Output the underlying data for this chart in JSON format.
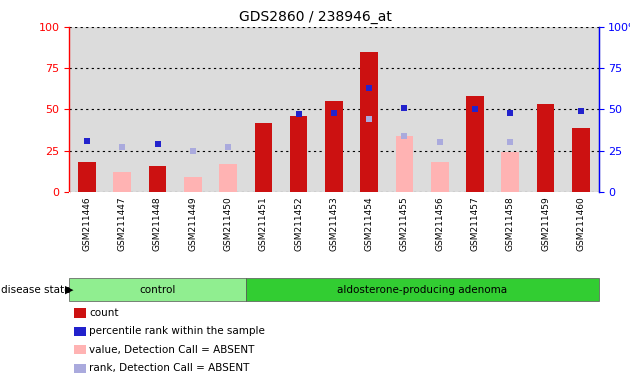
{
  "title": "GDS2860 / 238946_at",
  "samples": [
    "GSM211446",
    "GSM211447",
    "GSM211448",
    "GSM211449",
    "GSM211450",
    "GSM211451",
    "GSM211452",
    "GSM211453",
    "GSM211454",
    "GSM211455",
    "GSM211456",
    "GSM211457",
    "GSM211458",
    "GSM211459",
    "GSM211460"
  ],
  "count": [
    18,
    null,
    16,
    null,
    null,
    42,
    46,
    55,
    85,
    null,
    null,
    58,
    null,
    53,
    39
  ],
  "count_absent": [
    null,
    12,
    null,
    9,
    17,
    null,
    null,
    null,
    null,
    34,
    18,
    null,
    24,
    null,
    null
  ],
  "rank": [
    31,
    null,
    29,
    null,
    null,
    null,
    null,
    null,
    null,
    null,
    null,
    null,
    null,
    null,
    null
  ],
  "rank_absent": [
    null,
    27,
    null,
    25,
    27,
    null,
    null,
    null,
    44,
    34,
    30,
    null,
    30,
    null,
    null
  ],
  "percentile": [
    31,
    null,
    29,
    null,
    null,
    null,
    47,
    48,
    63,
    51,
    null,
    50,
    48,
    null,
    49
  ],
  "n_control": 5,
  "n_adenoma": 10,
  "count_color": "#CC1111",
  "count_absent_color": "#FFB3B3",
  "rank_color": "#2222CC",
  "rank_absent_color": "#AAAADD",
  "ylim": [
    0,
    100
  ],
  "background_plot": "#DCDCDC",
  "background_xtick": "#DCDCDC",
  "background_control": "#90EE90",
  "background_adenoma": "#32CD32",
  "legend_items": [
    {
      "color": "#CC1111",
      "label": "count",
      "shape": "square"
    },
    {
      "color": "#2222CC",
      "label": "percentile rank within the sample",
      "shape": "square"
    },
    {
      "color": "#FFB3B3",
      "label": "value, Detection Call = ABSENT",
      "shape": "square"
    },
    {
      "color": "#AAAADD",
      "label": "rank, Detection Call = ABSENT",
      "shape": "square"
    }
  ]
}
